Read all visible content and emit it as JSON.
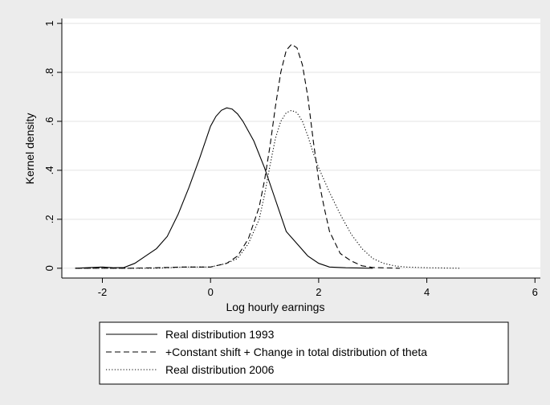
{
  "chart_data": {
    "type": "line",
    "title": "",
    "xlabel": "Log hourly earnings",
    "ylabel": "Kernel density",
    "xlim": [
      -2.75,
      6.1
    ],
    "ylim": [
      -0.04,
      1.02
    ],
    "x_ticks": [
      -2,
      0,
      2,
      4,
      6
    ],
    "x_tick_labels": [
      "-2",
      "0",
      "2",
      "4",
      "6"
    ],
    "y_ticks": [
      0,
      0.2,
      0.4,
      0.6,
      0.8,
      1
    ],
    "y_tick_labels": [
      "0",
      ".2",
      ".4",
      ".6",
      ".8",
      "1"
    ],
    "grid": "horizontal",
    "legend_position": "bottom",
    "series": [
      {
        "name": "Real distribution 1993",
        "style": "solid",
        "x": [
          -2.5,
          -2.0,
          -1.8,
          -1.6,
          -1.4,
          -1.2,
          -1.0,
          -0.8,
          -0.6,
          -0.4,
          -0.2,
          0.0,
          0.1,
          0.2,
          0.3,
          0.4,
          0.5,
          0.6,
          0.8,
          1.0,
          1.2,
          1.4,
          1.6,
          1.8,
          2.0,
          2.2,
          2.5,
          3.0
        ],
        "y": [
          0.0,
          0.005,
          0.002,
          0.003,
          0.02,
          0.05,
          0.08,
          0.13,
          0.22,
          0.33,
          0.45,
          0.58,
          0.62,
          0.645,
          0.655,
          0.65,
          0.63,
          0.6,
          0.52,
          0.41,
          0.28,
          0.15,
          0.1,
          0.05,
          0.02,
          0.005,
          0.002,
          0.0
        ]
      },
      {
        "name": "+Constant shift + Change in total distribution of theta",
        "style": "dashed",
        "x": [
          -2.5,
          -1.5,
          -1.0,
          -0.5,
          0.0,
          0.3,
          0.5,
          0.7,
          0.9,
          1.0,
          1.1,
          1.2,
          1.3,
          1.4,
          1.5,
          1.6,
          1.7,
          1.8,
          1.9,
          2.0,
          2.1,
          2.2,
          2.4,
          2.6,
          2.8,
          3.0,
          3.5
        ],
        "y": [
          0.0,
          0.0,
          0.002,
          0.005,
          0.005,
          0.02,
          0.05,
          0.12,
          0.25,
          0.36,
          0.5,
          0.66,
          0.8,
          0.89,
          0.915,
          0.9,
          0.83,
          0.7,
          0.52,
          0.36,
          0.25,
          0.15,
          0.06,
          0.03,
          0.01,
          0.003,
          0.0
        ]
      },
      {
        "name": "Real distribution 2006",
        "style": "dotted",
        "x": [
          -2.5,
          -1.0,
          -0.5,
          0.0,
          0.3,
          0.5,
          0.7,
          0.9,
          1.0,
          1.1,
          1.2,
          1.3,
          1.4,
          1.5,
          1.6,
          1.7,
          1.8,
          1.9,
          2.0,
          2.2,
          2.4,
          2.6,
          2.8,
          3.0,
          3.2,
          3.4,
          3.6,
          4.0,
          4.6
        ],
        "y": [
          0.0,
          0.0,
          0.005,
          0.005,
          0.02,
          0.04,
          0.1,
          0.2,
          0.3,
          0.42,
          0.53,
          0.6,
          0.635,
          0.645,
          0.635,
          0.6,
          0.54,
          0.47,
          0.41,
          0.31,
          0.22,
          0.14,
          0.08,
          0.04,
          0.02,
          0.01,
          0.005,
          0.002,
          0.0
        ]
      }
    ]
  }
}
